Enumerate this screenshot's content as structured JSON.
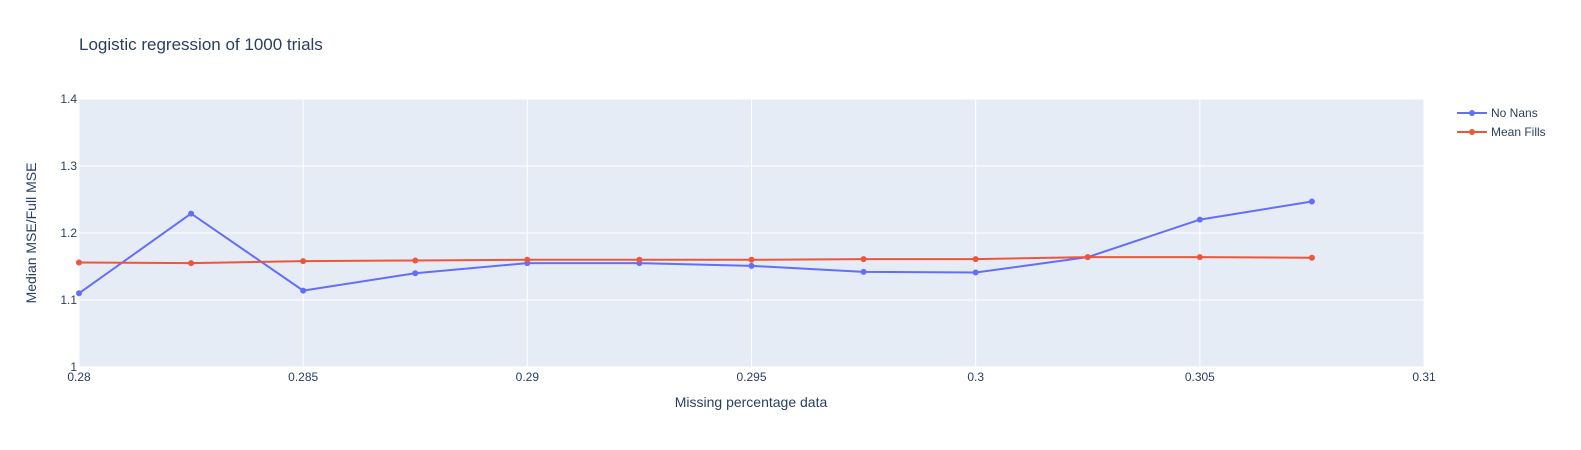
{
  "chart_data": {
    "type": "line",
    "title": "Logistic regression of 1000 trials",
    "xlabel": "Missing percentage data",
    "ylabel": "Median MSE/Full MSE",
    "xlim": [
      0.28,
      0.31
    ],
    "ylim": [
      1.0,
      1.4
    ],
    "x_ticks": [
      0.28,
      0.285,
      0.29,
      0.295,
      0.3,
      0.305,
      0.31
    ],
    "x_tick_labels": [
      "0.28",
      "0.285",
      "0.29",
      "0.295",
      "0.3",
      "0.305",
      "0.31"
    ],
    "y_ticks": [
      1.0,
      1.1,
      1.2,
      1.3,
      1.4
    ],
    "y_tick_labels": [
      "1",
      "1.1",
      "1.2",
      "1.3",
      "1.4"
    ],
    "grid": true,
    "legend_position": "top-right",
    "plot_bg": "#e5ecf6",
    "grid_color": "#ffffff",
    "x": [
      0.28,
      0.2825,
      0.285,
      0.2875,
      0.29,
      0.2925,
      0.295,
      0.2975,
      0.3,
      0.3025,
      0.305,
      0.3075
    ],
    "series": [
      {
        "name": "No Nans",
        "color": "#636efa",
        "values": [
          1.11,
          1.229,
          1.114,
          1.14,
          1.155,
          1.155,
          1.151,
          1.142,
          1.141,
          1.164,
          1.22,
          1.247
        ]
      },
      {
        "name": "Mean Fills",
        "color": "#ef553b",
        "values": [
          1.156,
          1.155,
          1.158,
          1.159,
          1.16,
          1.16,
          1.16,
          1.161,
          1.161,
          1.164,
          1.164,
          1.163
        ]
      }
    ]
  }
}
